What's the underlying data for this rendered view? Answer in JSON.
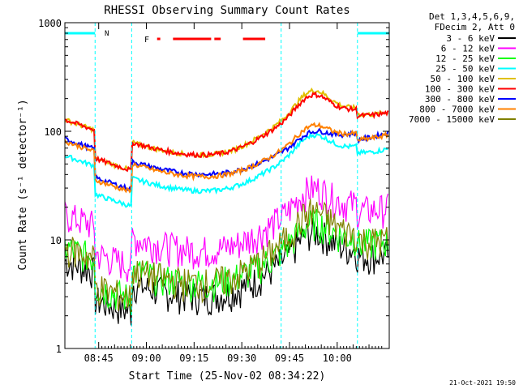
{
  "chart_data": {
    "type": "line",
    "title": "RHESSI Observing Summary Count Rates",
    "xlabel": "Start Time (25-Nov-02 08:34:22)",
    "ylabel": "Count Rate (s⁻¹ detector⁻¹)",
    "yscale": "log",
    "ylim": [
      1,
      1000
    ],
    "xlim_minutes_after_0834": [
      0,
      102
    ],
    "x_ticks": [
      "08:45",
      "09:00",
      "09:15",
      "09:30",
      "09:45",
      "10:00"
    ],
    "y_ticks": [
      "1",
      "10",
      "100",
      "1000"
    ],
    "legend_header": [
      "Det 1,3,4,5,6,9,",
      "FDecim 2, Att 0"
    ],
    "legend_position": "right, outside plot",
    "flags": {
      "N_label": "N",
      "F_label": "F"
    },
    "footer": "21-Oct-2021 19:50",
    "series": [
      {
        "name": "3 - 6 keV",
        "color": "#000000",
        "baseline": 3,
        "peak": 10
      },
      {
        "name": "6 - 12 keV",
        "color": "#ff00ff",
        "baseline": 8,
        "peak": 25
      },
      {
        "name": "12 - 25 keV",
        "color": "#00ff00",
        "baseline": 4,
        "peak": 12
      },
      {
        "name": "25 - 50 keV",
        "color": "#00ffff",
        "baseline": 28,
        "peak": 75
      },
      {
        "name": "50 - 100 keV",
        "color": "#e0c000",
        "baseline": 60,
        "peak": 200
      },
      {
        "name": "100 - 300 keV",
        "color": "#ff0000",
        "baseline": 60,
        "peak": 180
      },
      {
        "name": "300 - 800 keV",
        "color": "#0000ff",
        "baseline": 40,
        "peak": 75
      },
      {
        "name": "800 - 7000 keV",
        "color": "#ff8000",
        "baseline": 38,
        "peak": 90
      },
      {
        "name": "7000 - 15000 keV",
        "color": "#808000",
        "baseline": 4,
        "peak": 16
      }
    ]
  }
}
